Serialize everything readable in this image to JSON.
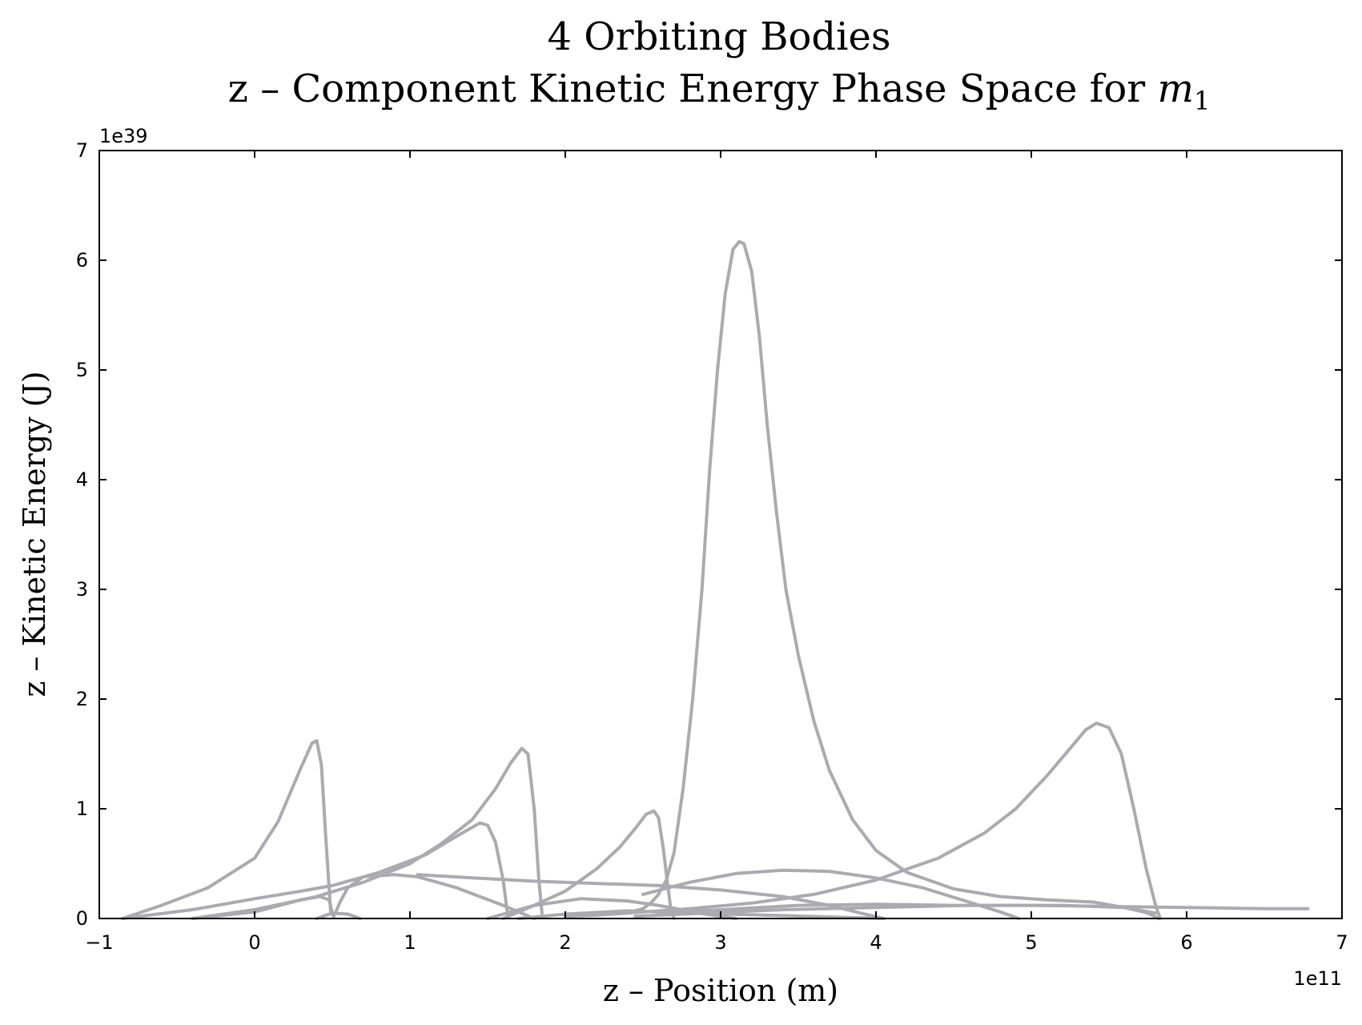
{
  "chart_data": {
    "type": "line",
    "title": "4 Orbiting Bodies",
    "subtitle_prefix": "z – Component Kinetic Energy Phase Space for ",
    "subtitle_math": "m",
    "subtitle_math_sub": "1",
    "xlabel": "z – Position (m)",
    "ylabel": "z – Kinetic Energy (J)",
    "x_multiplier": "1e11",
    "y_multiplier": "1e39",
    "xlim": [
      -1,
      7
    ],
    "ylim": [
      0,
      7
    ],
    "x_ticks": [
      -1,
      0,
      1,
      2,
      3,
      4,
      5,
      6,
      7
    ],
    "x_tick_labels": [
      "−1",
      "0",
      "1",
      "2",
      "3",
      "4",
      "5",
      "6",
      "7"
    ],
    "y_ticks": [
      0,
      1,
      2,
      3,
      4,
      5,
      6,
      7
    ],
    "y_tick_labels": [
      "0",
      "1",
      "2",
      "3",
      "4",
      "5",
      "6",
      "7"
    ],
    "grid": false,
    "line_color": "#abaab0",
    "series": [
      {
        "x": [
          -0.85,
          -0.6,
          -0.3,
          0.0,
          0.15,
          0.3,
          0.37,
          0.4,
          0.43,
          0.46,
          0.49,
          0.51,
          0.55,
          0.6,
          0.7,
          0.9,
          1.05,
          1.3,
          1.6,
          1.8
        ],
        "y": [
          0.0,
          0.12,
          0.28,
          0.55,
          0.88,
          1.38,
          1.6,
          1.62,
          1.4,
          0.7,
          0.05,
          0.02,
          0.15,
          0.28,
          0.38,
          0.4,
          0.38,
          0.28,
          0.12,
          0.0
        ]
      },
      {
        "x": [
          -0.85,
          -0.4,
          0.0,
          0.3,
          0.5,
          0.8,
          1.1,
          1.3,
          1.45,
          1.5,
          1.55,
          1.6,
          1.63
        ],
        "y": [
          0.0,
          0.08,
          0.18,
          0.25,
          0.3,
          0.42,
          0.58,
          0.75,
          0.87,
          0.85,
          0.7,
          0.35,
          0.02
        ]
      },
      {
        "x": [
          -0.4,
          0.0,
          0.4,
          0.7,
          1.0,
          1.2,
          1.4,
          1.55,
          1.65,
          1.72,
          1.76,
          1.8,
          1.83,
          1.85
        ],
        "y": [
          0.0,
          0.08,
          0.2,
          0.33,
          0.5,
          0.68,
          0.9,
          1.18,
          1.42,
          1.55,
          1.5,
          1.0,
          0.35,
          0.05
        ]
      },
      {
        "x": [
          -0.4,
          0.0,
          0.3,
          0.42,
          0.48,
          0.5
        ],
        "y": [
          0.0,
          0.06,
          0.17,
          0.2,
          0.17,
          0.05
        ]
      },
      {
        "x": [
          0.4,
          0.5,
          0.6,
          0.68
        ],
        "y": [
          0.0,
          0.05,
          0.04,
          0.0
        ]
      },
      {
        "x": [
          1.05,
          1.4,
          1.8,
          2.2,
          2.6,
          3.0,
          3.4,
          3.7,
          3.9,
          4.05
        ],
        "y": [
          0.4,
          0.37,
          0.34,
          0.32,
          0.3,
          0.26,
          0.2,
          0.12,
          0.05,
          0.0
        ]
      },
      {
        "x": [
          1.6,
          1.8,
          2.0,
          2.2,
          2.35,
          2.45,
          2.52,
          2.57,
          2.6,
          2.63,
          2.66,
          2.68,
          2.7
        ],
        "y": [
          0.0,
          0.12,
          0.25,
          0.45,
          0.65,
          0.82,
          0.95,
          0.98,
          0.92,
          0.65,
          0.3,
          0.08,
          0.0
        ]
      },
      {
        "x": [
          1.5,
          1.8,
          2.1,
          2.4,
          2.6,
          2.9,
          3.1
        ],
        "y": [
          0.0,
          0.12,
          0.18,
          0.16,
          0.12,
          0.04,
          0.0
        ]
      },
      {
        "x": [
          2.0,
          2.2,
          2.4,
          2.5,
          2.55,
          2.6,
          2.65,
          2.7,
          2.76,
          2.82,
          2.88,
          2.93,
          2.98,
          3.03,
          3.08,
          3.12,
          3.15,
          3.2,
          3.25,
          3.3,
          3.36,
          3.42,
          3.5,
          3.6,
          3.7,
          3.85,
          4.0,
          4.2,
          4.5,
          4.8,
          5.1,
          5.4,
          5.6,
          5.75,
          5.82
        ],
        "y": [
          0.02,
          0.03,
          0.05,
          0.09,
          0.14,
          0.22,
          0.35,
          0.6,
          1.2,
          2.0,
          3.0,
          4.1,
          5.0,
          5.7,
          6.1,
          6.17,
          6.15,
          5.9,
          5.3,
          4.5,
          3.7,
          3.0,
          2.4,
          1.8,
          1.35,
          0.9,
          0.62,
          0.42,
          0.27,
          0.2,
          0.17,
          0.15,
          0.1,
          0.05,
          0.0
        ]
      },
      {
        "x": [
          2.5,
          2.8,
          3.1,
          3.4,
          3.7,
          4.0,
          4.3,
          4.6,
          4.8,
          4.92
        ],
        "y": [
          0.22,
          0.33,
          0.41,
          0.44,
          0.43,
          0.37,
          0.28,
          0.15,
          0.06,
          0.0
        ]
      },
      {
        "x": [
          2.6,
          3.0,
          3.5,
          4.0,
          4.5,
          5.0,
          5.5,
          6.0,
          6.5,
          6.78
        ],
        "y": [
          0.05,
          0.08,
          0.12,
          0.13,
          0.12,
          0.12,
          0.11,
          0.1,
          0.09,
          0.09
        ]
      },
      {
        "x": [
          2.0,
          2.4,
          2.8,
          3.2,
          3.6,
          4.0,
          4.4,
          4.7,
          4.9,
          5.1,
          5.25,
          5.35,
          5.42,
          5.5,
          5.58,
          5.66,
          5.74,
          5.8,
          5.83
        ],
        "y": [
          0.02,
          0.05,
          0.09,
          0.14,
          0.22,
          0.35,
          0.55,
          0.78,
          1.0,
          1.3,
          1.55,
          1.72,
          1.78,
          1.74,
          1.5,
          1.0,
          0.45,
          0.12,
          0.0
        ]
      },
      {
        "x": [
          2.45,
          2.9,
          3.4,
          4.0,
          4.6,
          5.2,
          5.6,
          5.8
        ],
        "y": [
          0.02,
          0.05,
          0.08,
          0.1,
          0.12,
          0.12,
          0.1,
          0.05
        ]
      },
      {
        "x": [
          1.7,
          2.0,
          2.4,
          2.8,
          3.3,
          3.8,
          4.05
        ],
        "y": [
          0.0,
          0.04,
          0.07,
          0.05,
          0.03,
          0.01,
          0.0
        ]
      }
    ]
  }
}
